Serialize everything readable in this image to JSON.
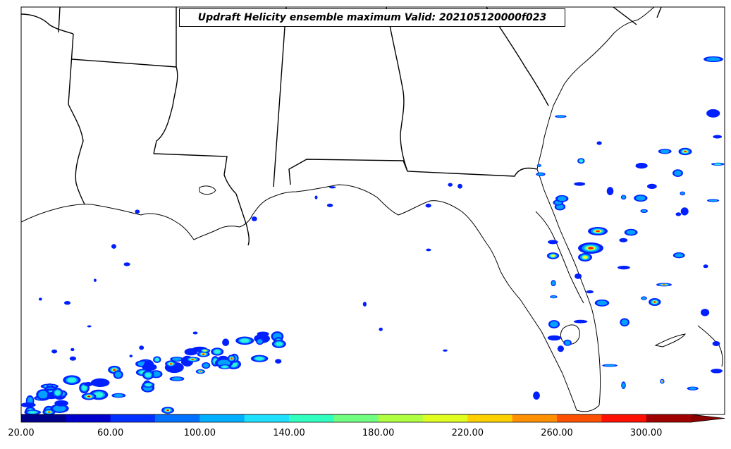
{
  "title": "Updraft Helicity ensemble maximum Valid: 202105120000f023",
  "colorbar": {
    "ticks": [
      "20.00",
      "60.00",
      "100.00",
      "140.00",
      "180.00",
      "220.00",
      "260.00",
      "300.00"
    ],
    "colors": [
      "#00008b",
      "#0000cd",
      "#0030ff",
      "#0070ff",
      "#00b0ff",
      "#20e0ff",
      "#30ffc0",
      "#70ff80",
      "#b0ff40",
      "#e0ff20",
      "#ffd000",
      "#ff9000",
      "#ff5000",
      "#ff1000",
      "#a00000"
    ],
    "extend_color": "#8b0000"
  },
  "map": {
    "land_color": "#ffffff",
    "line_color": "#000000",
    "region": "Southeastern United States and Gulf of Mexico"
  }
}
